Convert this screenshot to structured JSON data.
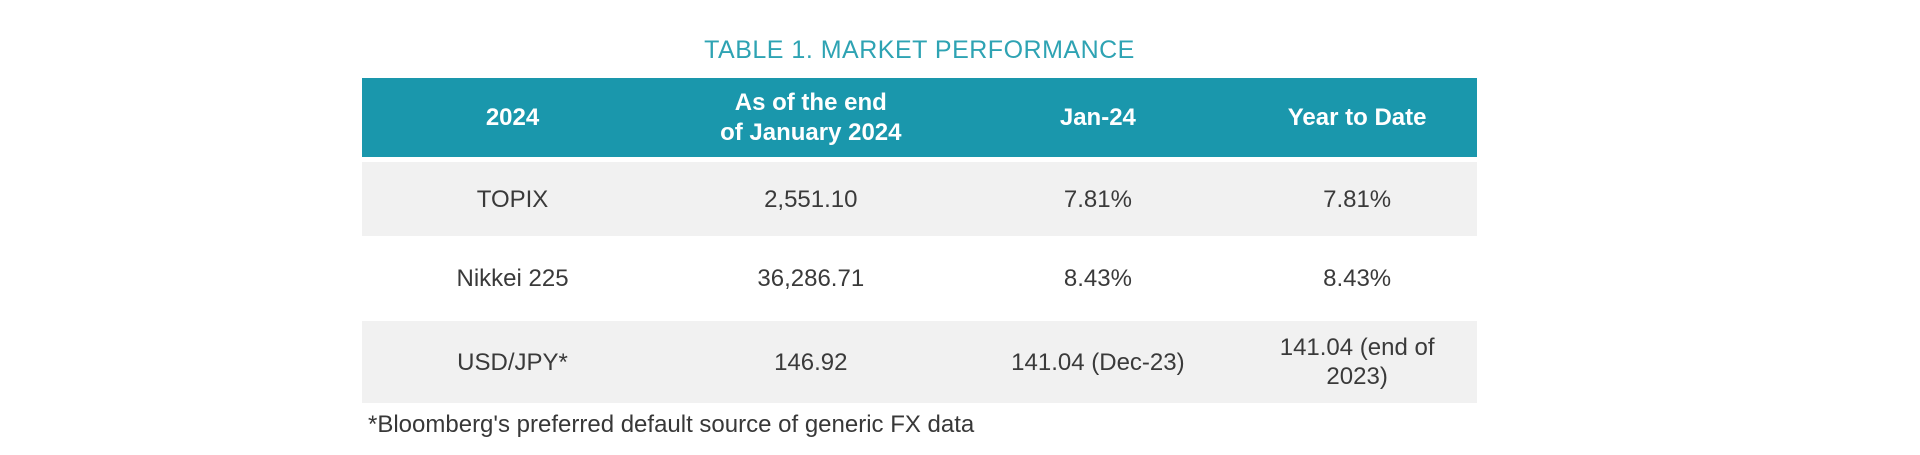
{
  "title": "TABLE 1. MARKET PERFORMANCE",
  "table": {
    "header": [
      "2024",
      "As of the end\nof January 2024",
      "Jan-24",
      "Year to Date"
    ],
    "rows": [
      [
        "TOPIX",
        "2,551.10",
        "7.81%",
        "7.81%"
      ],
      [
        "Nikkei 225",
        "36,286.71",
        "8.43%",
        "8.43%"
      ],
      [
        "USD/JPY*",
        "146.92",
        "141.04 (Dec-23)",
        "141.04 (end of\n2023)"
      ]
    ]
  },
  "footnote": "*Bloomberg's preferred default source of generic FX data",
  "colors": {
    "accent_teal": "#1A97AC",
    "title_teal": "#2EA3B3",
    "row_shade": "#F1F1F1",
    "header_text": "#FFFFFF",
    "body_text": "#3A3A3A"
  },
  "chart_data": {
    "type": "table",
    "title": "TABLE 1. MARKET PERFORMANCE",
    "columns": [
      "2024",
      "As of the end of January 2024",
      "Jan-24",
      "Year to Date"
    ],
    "rows": [
      [
        "TOPIX",
        "2,551.10",
        "7.81%",
        "7.81%"
      ],
      [
        "Nikkei 225",
        "36,286.71",
        "8.43%",
        "8.43%"
      ],
      [
        "USD/JPY*",
        "146.92",
        "141.04 (Dec-23)",
        "141.04 (end of 2023)"
      ]
    ],
    "footnote": "*Bloomberg's preferred default source of generic FX data",
    "layout": {
      "header_style": "teal-band",
      "row_shading": "alternating-light-gray",
      "gridlines": false
    }
  }
}
